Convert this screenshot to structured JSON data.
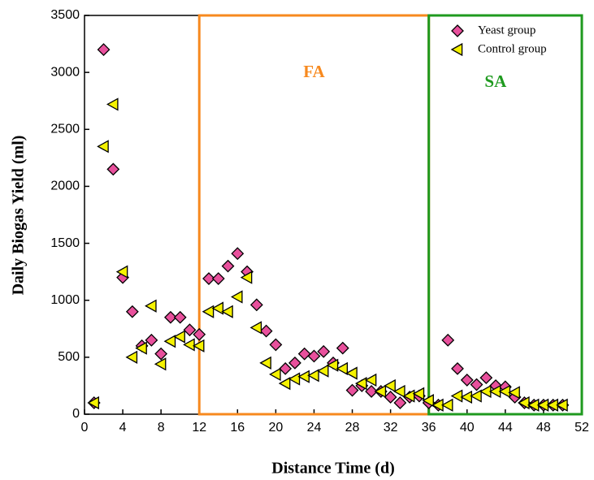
{
  "chart_data": {
    "type": "scatter",
    "xlabel": "Distance Time (d)",
    "ylabel": "Daily Biogas Yield (ml)",
    "x": [
      1,
      2,
      3,
      4,
      5,
      6,
      7,
      8,
      9,
      10,
      11,
      12,
      13,
      14,
      15,
      16,
      17,
      18,
      19,
      20,
      21,
      22,
      23,
      24,
      25,
      26,
      27,
      28,
      29,
      30,
      31,
      32,
      33,
      34,
      35,
      36,
      37,
      38,
      39,
      40,
      41,
      42,
      43,
      44,
      45,
      46,
      47,
      48,
      49,
      50
    ],
    "series": [
      {
        "name": "Yeast group",
        "color": "#e8509c",
        "marker": "diamond",
        "values": [
          100,
          3200,
          2150,
          1200,
          900,
          600,
          650,
          530,
          850,
          850,
          740,
          700,
          1190,
          1190,
          1300,
          1410,
          1250,
          960,
          730,
          610,
          400,
          450,
          530,
          510,
          550,
          450,
          580,
          210,
          250,
          200,
          200,
          150,
          100,
          150,
          160,
          100,
          80,
          650,
          400,
          300,
          260,
          320,
          250,
          240,
          150,
          100,
          80,
          80,
          80,
          80
        ]
      },
      {
        "name": "Control group",
        "color": "#f5f200",
        "marker": "triangle-left",
        "values": [
          100,
          2350,
          2720,
          1250,
          500,
          580,
          950,
          440,
          640,
          680,
          610,
          600,
          900,
          930,
          900,
          1030,
          1200,
          760,
          450,
          350,
          270,
          310,
          330,
          340,
          380,
          430,
          400,
          360,
          270,
          300,
          200,
          250,
          200,
          160,
          180,
          120,
          80,
          80,
          160,
          150,
          160,
          200,
          200,
          200,
          190,
          100,
          80,
          80,
          80,
          80
        ]
      }
    ],
    "regions": [
      {
        "label": "FA",
        "start": 12,
        "end": 36,
        "color": "#f7891e"
      },
      {
        "label": "SA",
        "start": 36,
        "end": 52,
        "color": "#1f9a1f"
      }
    ],
    "xlim": [
      0,
      52
    ],
    "xticks": [
      0,
      4,
      8,
      12,
      16,
      20,
      24,
      28,
      32,
      36,
      40,
      44,
      48,
      52
    ],
    "ylim": [
      0,
      3500
    ],
    "yticks": [
      0,
      500,
      1000,
      1500,
      2000,
      2500,
      3000,
      3500
    ],
    "legend": "top-right"
  }
}
